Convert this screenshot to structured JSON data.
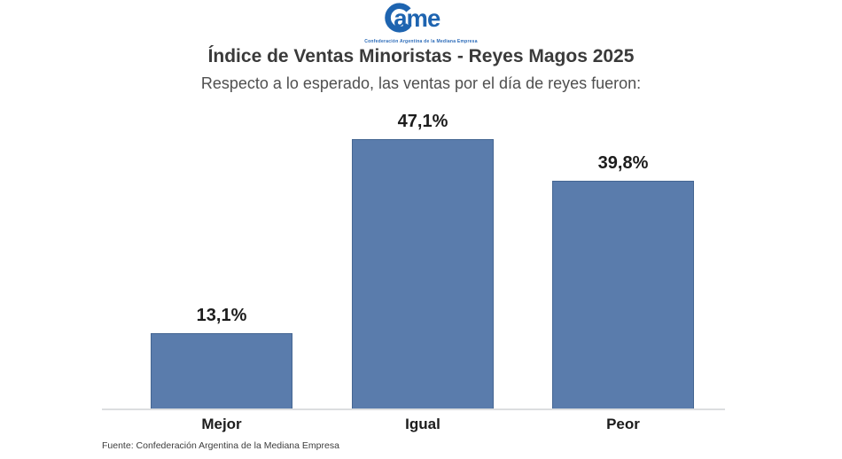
{
  "logo": {
    "wordmark_rest": "ame",
    "tagline": "Confederación Argentina de la Mediana Empresa",
    "color": "#1e64b0"
  },
  "header": {
    "title": "Índice de Ventas Minoristas - Reyes Magos 2025",
    "subtitle": "Respecto a lo esperado, las ventas por el día de reyes fueron:"
  },
  "chart_data": {
    "type": "bar",
    "categories": [
      "Mejor",
      "Igual",
      "Peor"
    ],
    "values": [
      13.1,
      47.1,
      39.8
    ],
    "value_labels": [
      "13,1%",
      "47,1%",
      "39,8%"
    ],
    "title": "Índice de Ventas Minoristas - Reyes Magos 2025",
    "subtitle": "Respecto a lo esperado, las ventas por el día de reyes fueron:",
    "xlabel": "",
    "ylabel": "",
    "ylim": [
      0,
      50
    ],
    "grid": false,
    "legend": "none",
    "bar_color": "#5a7cac",
    "axis_line_color": "#dcdee0"
  },
  "footer": {
    "source": "Fuente: Confederación Argentina de la Mediana Empresa"
  }
}
